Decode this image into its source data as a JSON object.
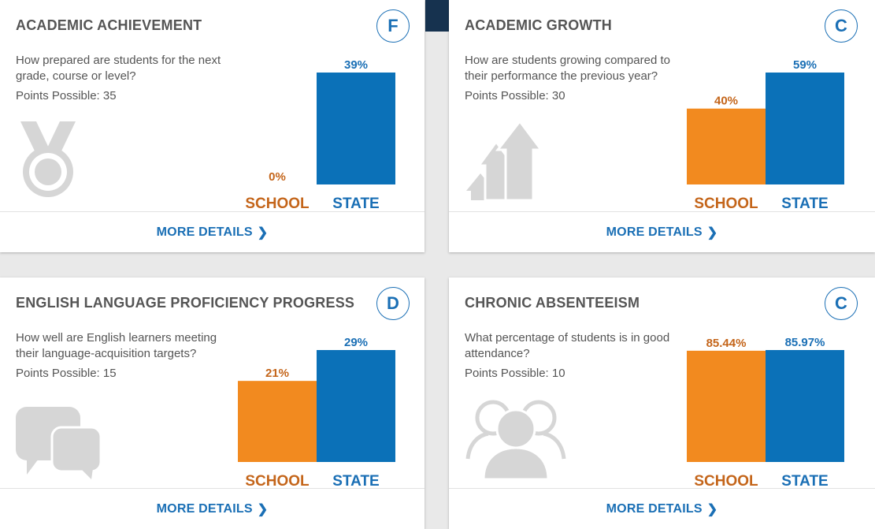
{
  "colors": {
    "school": "#f28a1f",
    "state": "#0b71b8",
    "school_text": "#c4651a",
    "state_text": "#1a6fb5"
  },
  "more_details_label": "MORE DETAILS",
  "cards": [
    {
      "title": "ACADEMIC ACHIEVEMENT",
      "grade": "F",
      "question": "How prepared are students for the next grade, course or level?",
      "points": "Points Possible: 35",
      "icon": "medal-icon"
    },
    {
      "title": "ACADEMIC GROWTH",
      "grade": "C",
      "question": "How are students growing compared to their performance the previous year?",
      "points": "Points Possible: 30",
      "icon": "growth-arrows-icon"
    },
    {
      "title": "ENGLISH LANGUAGE PROFICIENCY PROGRESS",
      "grade": "D",
      "question": "How well are English learners meeting their language-acquisition targets?",
      "points": "Points Possible: 15",
      "icon": "speech-bubbles-icon"
    },
    {
      "title": "CHRONIC ABSENTEEISM",
      "grade": "C",
      "question": "What percentage of students is in good attendance?",
      "points": "Points Possible: 10",
      "icon": "people-icon"
    }
  ],
  "chart_data": [
    {
      "type": "bar",
      "categories": [
        "SCHOOL",
        "STATE"
      ],
      "values": [
        0,
        39
      ],
      "labels": [
        "0%",
        "39%"
      ],
      "ylim": [
        0,
        39
      ]
    },
    {
      "type": "bar",
      "categories": [
        "SCHOOL",
        "STATE"
      ],
      "values": [
        40,
        59
      ],
      "labels": [
        "40%",
        "59%"
      ],
      "ylim": [
        0,
        59
      ]
    },
    {
      "type": "bar",
      "categories": [
        "SCHOOL",
        "STATE"
      ],
      "values": [
        21,
        29
      ],
      "labels": [
        "21%",
        "29%"
      ],
      "ylim": [
        0,
        29
      ]
    },
    {
      "type": "bar",
      "categories": [
        "SCHOOL",
        "STATE"
      ],
      "values": [
        85.44,
        85.97
      ],
      "labels": [
        "85.44%",
        "85.97%"
      ],
      "ylim": [
        0,
        85.97
      ]
    }
  ]
}
